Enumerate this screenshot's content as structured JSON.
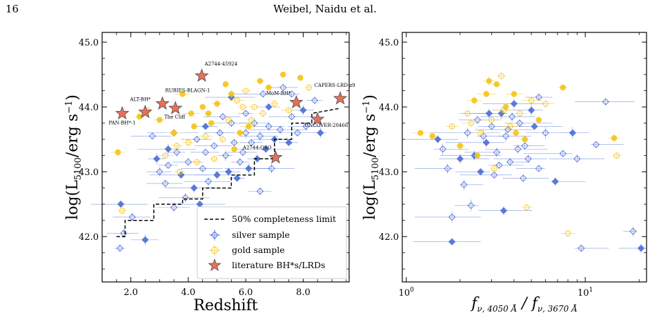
{
  "header": {
    "page_number": "16",
    "running_head": "Weibel, Naidu et al."
  },
  "colors": {
    "silver": "#4c6fd6",
    "gold": "#f5c518",
    "literature": "#e8705a",
    "literature_edge": "#555555"
  },
  "chart_data": [
    {
      "type": "scatter",
      "title": "",
      "xlabel": "Redshift",
      "ylabel": "log(L_5100/erg s^-1)",
      "xlim": [
        1.0,
        9.6
      ],
      "ylim": [
        41.3,
        45.15
      ],
      "xticks": [
        "2.0",
        "4.0",
        "6.0",
        "8.0"
      ],
      "yticks": [
        "42.0",
        "43.0",
        "44.0",
        "45.0"
      ],
      "legend": {
        "placement": "lower-right",
        "entries": [
          "50% completeness limit",
          "silver sample",
          "gold sample",
          "literature BH*s/LRDs"
        ]
      },
      "completeness_limit": {
        "name": "50% completeness limit",
        "x": [
          1.5,
          1.8,
          1.8,
          2.8,
          2.8,
          3.8,
          3.8,
          4.5,
          4.5,
          5.5,
          5.5,
          6.3,
          6.3,
          7.0,
          7.0,
          7.6,
          7.6,
          8.3,
          8.3,
          9.3
        ],
        "y": [
          42.0,
          42.0,
          42.25,
          42.25,
          42.5,
          42.5,
          42.58,
          42.58,
          42.75,
          42.75,
          42.95,
          42.95,
          43.2,
          43.2,
          43.5,
          43.5,
          43.75,
          43.75,
          43.9,
          43.98
        ]
      },
      "literature": [
        {
          "label": "PAN-BH*-1",
          "x": 1.7,
          "y": 43.9
        },
        {
          "label": "ALT-BH*",
          "x": 2.5,
          "y": 43.92
        },
        {
          "label": "RUBIES-BLAGN-1",
          "x": 3.1,
          "y": 44.05
        },
        {
          "label": "The Cliff",
          "x": 3.55,
          "y": 43.98
        },
        {
          "label": "A2744-45924",
          "x": 4.47,
          "y": 44.48
        },
        {
          "label": "A2744-QSO",
          "x": 7.04,
          "y": 43.22
        },
        {
          "label": "MoM-BH*",
          "x": 7.76,
          "y": 44.07
        },
        {
          "label": "UNCOVER-20466",
          "x": 8.5,
          "y": 43.81
        },
        {
          "label": "CAPERS-LRD-z9",
          "x": 9.29,
          "y": 44.13
        }
      ],
      "silver": [
        {
          "x": 1.65,
          "y": 42.5
        },
        {
          "x": 1.62,
          "y": 41.82
        },
        {
          "x": 2.05,
          "y": 42.3
        },
        {
          "x": 2.5,
          "y": 41.95
        },
        {
          "x": 1.75,
          "y": 42.05
        },
        {
          "x": 2.75,
          "y": 43.55
        },
        {
          "x": 2.9,
          "y": 43.2
        },
        {
          "x": 3.0,
          "y": 43.0
        },
        {
          "x": 3.2,
          "y": 42.82
        },
        {
          "x": 3.3,
          "y": 43.35
        },
        {
          "x": 3.5,
          "y": 43.6
        },
        {
          "x": 3.6,
          "y": 43.3
        },
        {
          "x": 3.75,
          "y": 42.95
        },
        {
          "x": 3.9,
          "y": 42.6
        },
        {
          "x": 4.0,
          "y": 43.15
        },
        {
          "x": 4.2,
          "y": 42.75
        },
        {
          "x": 4.3,
          "y": 43.5
        },
        {
          "x": 4.5,
          "y": 43.05
        },
        {
          "x": 4.6,
          "y": 43.7
        },
        {
          "x": 4.7,
          "y": 42.85
        },
        {
          "x": 4.9,
          "y": 43.4
        },
        {
          "x": 5.0,
          "y": 42.95
        },
        {
          "x": 5.1,
          "y": 43.6
        },
        {
          "x": 5.3,
          "y": 43.25
        },
        {
          "x": 5.4,
          "y": 43.0
        },
        {
          "x": 5.5,
          "y": 43.75
        },
        {
          "x": 5.6,
          "y": 43.45
        },
        {
          "x": 5.7,
          "y": 42.9
        },
        {
          "x": 5.9,
          "y": 43.3
        },
        {
          "x": 6.0,
          "y": 43.6
        },
        {
          "x": 6.1,
          "y": 43.05
        },
        {
          "x": 6.2,
          "y": 43.45
        },
        {
          "x": 6.3,
          "y": 43.75
        },
        {
          "x": 6.4,
          "y": 43.2
        },
        {
          "x": 6.5,
          "y": 43.55
        },
        {
          "x": 6.6,
          "y": 44.2
        },
        {
          "x": 6.7,
          "y": 43.35
        },
        {
          "x": 6.8,
          "y": 43.7
        },
        {
          "x": 6.9,
          "y": 43.05
        },
        {
          "x": 7.0,
          "y": 43.5
        },
        {
          "x": 7.2,
          "y": 43.65
        },
        {
          "x": 7.3,
          "y": 44.3
        },
        {
          "x": 7.5,
          "y": 43.45
        },
        {
          "x": 7.6,
          "y": 43.85
        },
        {
          "x": 7.8,
          "y": 43.6
        },
        {
          "x": 8.0,
          "y": 43.95
        },
        {
          "x": 8.1,
          "y": 43.7
        },
        {
          "x": 8.4,
          "y": 44.1
        },
        {
          "x": 8.6,
          "y": 43.6
        },
        {
          "x": 6.5,
          "y": 42.7
        },
        {
          "x": 6.0,
          "y": 43.9
        },
        {
          "x": 5.5,
          "y": 44.15
        },
        {
          "x": 5.2,
          "y": 43.85
        },
        {
          "x": 4.6,
          "y": 43.3
        },
        {
          "x": 4.4,
          "y": 42.5
        },
        {
          "x": 3.5,
          "y": 42.45
        },
        {
          "x": 3.3,
          "y": 43.1
        },
        {
          "x": 6.8,
          "y": 44.0
        },
        {
          "x": 7.6,
          "y": 44.2
        },
        {
          "x": 5.8,
          "y": 43.15
        }
      ],
      "gold": [
        {
          "x": 1.55,
          "y": 43.3
        },
        {
          "x": 1.7,
          "y": 42.4
        },
        {
          "x": 2.3,
          "y": 43.85
        },
        {
          "x": 2.6,
          "y": 43.95
        },
        {
          "x": 3.0,
          "y": 43.8
        },
        {
          "x": 3.2,
          "y": 43.25
        },
        {
          "x": 3.5,
          "y": 43.6
        },
        {
          "x": 3.7,
          "y": 43.0
        },
        {
          "x": 3.8,
          "y": 44.2
        },
        {
          "x": 4.0,
          "y": 43.45
        },
        {
          "x": 4.1,
          "y": 43.9
        },
        {
          "x": 4.3,
          "y": 43.15
        },
        {
          "x": 4.5,
          "y": 44.0
        },
        {
          "x": 4.6,
          "y": 43.55
        },
        {
          "x": 4.8,
          "y": 43.75
        },
        {
          "x": 4.9,
          "y": 43.2
        },
        {
          "x": 5.0,
          "y": 44.05
        },
        {
          "x": 5.2,
          "y": 43.5
        },
        {
          "x": 5.3,
          "y": 44.35
        },
        {
          "x": 5.4,
          "y": 43.8
        },
        {
          "x": 5.6,
          "y": 43.35
        },
        {
          "x": 5.7,
          "y": 44.1
        },
        {
          "x": 5.8,
          "y": 43.6
        },
        {
          "x": 6.0,
          "y": 44.25
        },
        {
          "x": 6.1,
          "y": 43.7
        },
        {
          "x": 6.3,
          "y": 44.0
        },
        {
          "x": 6.5,
          "y": 44.4
        },
        {
          "x": 6.6,
          "y": 43.9
        },
        {
          "x": 6.8,
          "y": 44.3
        },
        {
          "x": 7.0,
          "y": 44.05
        },
        {
          "x": 7.3,
          "y": 44.5
        },
        {
          "x": 7.5,
          "y": 43.95
        },
        {
          "x": 7.9,
          "y": 44.45
        },
        {
          "x": 8.2,
          "y": 44.3
        },
        {
          "x": 4.2,
          "y": 43.7
        },
        {
          "x": 3.6,
          "y": 43.4
        },
        {
          "x": 5.5,
          "y": 44.2
        },
        {
          "x": 6.2,
          "y": 43.8
        },
        {
          "x": 4.7,
          "y": 43.9
        },
        {
          "x": 5.9,
          "y": 44.0
        }
      ]
    },
    {
      "type": "scatter",
      "title": "",
      "xlabel": "f_ν,4050Å / f_ν,3670Å",
      "ylabel": "log(L_5100/erg s^-1)",
      "xscale": "log",
      "xlim": [
        0.95,
        22
      ],
      "ylim": [
        41.3,
        45.15
      ],
      "xticks": [
        "10^0",
        "10^1"
      ],
      "yticks": [
        "42.0",
        "43.0",
        "44.0",
        "45.0"
      ],
      "silver": [
        {
          "x": 1.8,
          "y": 41.92
        },
        {
          "x": 9.5,
          "y": 41.82
        },
        {
          "x": 18.5,
          "y": 42.08
        },
        {
          "x": 20.5,
          "y": 41.82
        },
        {
          "x": 1.8,
          "y": 42.3
        },
        {
          "x": 2.3,
          "y": 42.48
        },
        {
          "x": 3.5,
          "y": 42.4
        },
        {
          "x": 13.0,
          "y": 44.08
        },
        {
          "x": 7.5,
          "y": 43.28
        },
        {
          "x": 8.5,
          "y": 43.6
        },
        {
          "x": 9.0,
          "y": 43.2
        },
        {
          "x": 11.5,
          "y": 43.42
        },
        {
          "x": 6.8,
          "y": 42.85
        },
        {
          "x": 5.5,
          "y": 43.05
        },
        {
          "x": 4.5,
          "y": 42.9
        },
        {
          "x": 2.0,
          "y": 43.2
        },
        {
          "x": 2.2,
          "y": 43.6
        },
        {
          "x": 2.5,
          "y": 43.8
        },
        {
          "x": 2.8,
          "y": 43.45
        },
        {
          "x": 3.0,
          "y": 43.7
        },
        {
          "x": 3.2,
          "y": 43.3
        },
        {
          "x": 3.4,
          "y": 43.9
        },
        {
          "x": 3.6,
          "y": 43.55
        },
        {
          "x": 3.8,
          "y": 43.15
        },
        {
          "x": 4.0,
          "y": 44.05
        },
        {
          "x": 4.3,
          "y": 43.75
        },
        {
          "x": 4.6,
          "y": 43.4
        },
        {
          "x": 5.0,
          "y": 43.95
        },
        {
          "x": 5.5,
          "y": 44.15
        },
        {
          "x": 6.0,
          "y": 43.6
        },
        {
          "x": 1.5,
          "y": 43.5
        },
        {
          "x": 1.7,
          "y": 43.05
        },
        {
          "x": 2.1,
          "y": 42.8
        },
        {
          "x": 2.6,
          "y": 43.0
        },
        {
          "x": 3.1,
          "y": 42.95
        },
        {
          "x": 1.6,
          "y": 43.35
        },
        {
          "x": 2.4,
          "y": 43.25
        },
        {
          "x": 4.8,
          "y": 43.2
        },
        {
          "x": 3.3,
          "y": 43.1
        },
        {
          "x": 2.9,
          "y": 43.9
        },
        {
          "x": 3.7,
          "y": 43.65
        },
        {
          "x": 4.2,
          "y": 43.35
        },
        {
          "x": 5.2,
          "y": 43.7
        },
        {
          "x": 2.7,
          "y": 43.55
        },
        {
          "x": 3.9,
          "y": 43.85
        }
      ],
      "gold": [
        {
          "x": 1.4,
          "y": 43.55
        },
        {
          "x": 1.8,
          "y": 43.7
        },
        {
          "x": 2.0,
          "y": 43.4
        },
        {
          "x": 2.2,
          "y": 43.9
        },
        {
          "x": 2.4,
          "y": 44.1
        },
        {
          "x": 2.6,
          "y": 43.6
        },
        {
          "x": 2.8,
          "y": 44.2
        },
        {
          "x": 3.0,
          "y": 43.8
        },
        {
          "x": 3.2,
          "y": 44.35
        },
        {
          "x": 3.4,
          "y": 44.48
        },
        {
          "x": 3.6,
          "y": 44.0
        },
        {
          "x": 3.8,
          "y": 43.7
        },
        {
          "x": 4.0,
          "y": 44.2
        },
        {
          "x": 4.3,
          "y": 43.9
        },
        {
          "x": 4.6,
          "y": 43.5
        },
        {
          "x": 5.0,
          "y": 44.1
        },
        {
          "x": 5.5,
          "y": 43.8
        },
        {
          "x": 6.0,
          "y": 44.05
        },
        {
          "x": 7.5,
          "y": 44.3
        },
        {
          "x": 8.0,
          "y": 42.05
        },
        {
          "x": 14.5,
          "y": 43.52
        },
        {
          "x": 15.0,
          "y": 43.25
        },
        {
          "x": 1.2,
          "y": 43.6
        },
        {
          "x": 4.7,
          "y": 42.45
        },
        {
          "x": 2.5,
          "y": 43.25
        },
        {
          "x": 3.1,
          "y": 43.05
        },
        {
          "x": 2.9,
          "y": 44.4
        },
        {
          "x": 3.5,
          "y": 43.95
        },
        {
          "x": 4.1,
          "y": 43.6
        },
        {
          "x": 2.3,
          "y": 43.75
        }
      ]
    }
  ]
}
